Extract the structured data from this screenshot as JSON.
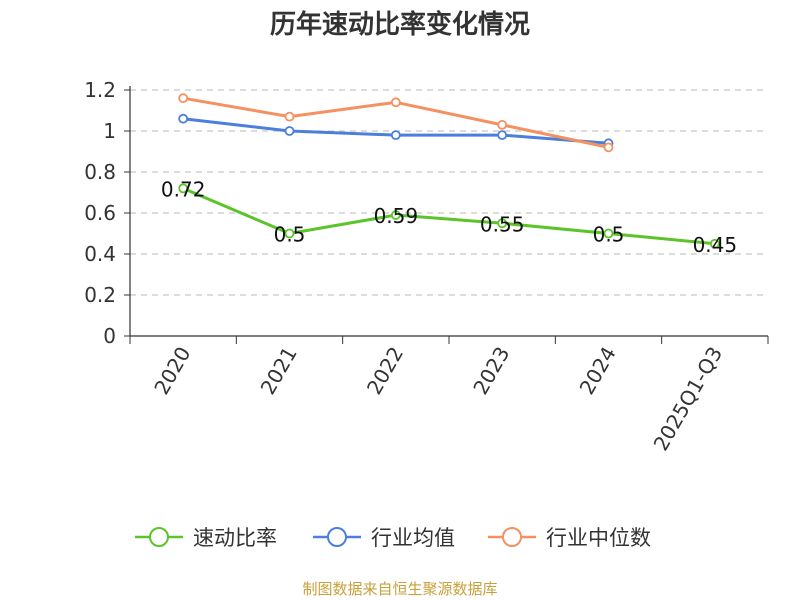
{
  "chart_data": {
    "type": "line",
    "title": "历年速动比率变化情况",
    "categories": [
      "2020",
      "2021",
      "2022",
      "2023",
      "2024",
      "2025Q1-Q3"
    ],
    "ylim": [
      0,
      1.2
    ],
    "yticks": [
      "0",
      "0.2",
      "0.4",
      "0.6",
      "0.8",
      "1",
      "1.2"
    ],
    "grid": true,
    "legend_position": "bottom",
    "series": [
      {
        "name": "速动比率",
        "color": "#5cc42a",
        "values": [
          0.72,
          0.5,
          0.59,
          0.55,
          0.5,
          0.45
        ],
        "labels": [
          "0.72",
          "0.5",
          "0.59",
          "0.55",
          "0.5",
          "0.45"
        ]
      },
      {
        "name": "行业均值",
        "color": "#4a7fdb",
        "values": [
          1.06,
          1.0,
          0.98,
          0.98,
          0.94,
          null
        ]
      },
      {
        "name": "行业中位数",
        "color": "#f59060",
        "values": [
          1.16,
          1.07,
          1.14,
          1.03,
          0.92,
          null
        ]
      }
    ]
  },
  "footer": {
    "source": "制图数据来自恒生聚源数据库"
  }
}
